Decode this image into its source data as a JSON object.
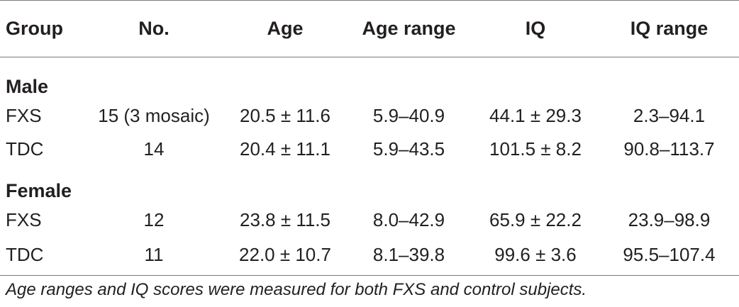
{
  "table": {
    "headers": [
      "Group",
      "No.",
      "Age",
      "Age range",
      "IQ",
      "IQ range"
    ],
    "sections": [
      {
        "label": "Male",
        "rows": [
          [
            "FXS",
            "15 (3 mosaic)",
            "20.5 ± 11.6",
            "5.9–40.9",
            "44.1 ± 29.3",
            "2.3–94.1"
          ],
          [
            "TDC",
            "14",
            "20.4 ± 11.1",
            "5.9–43.5",
            "101.5 ± 8.2",
            "90.8–113.7"
          ]
        ]
      },
      {
        "label": "Female",
        "rows": [
          [
            "FXS",
            "12",
            "23.8 ± 11.5",
            "8.0–42.9",
            "65.9 ± 22.2",
            "23.9–98.9"
          ],
          [
            "TDC",
            "11",
            "22.0 ± 10.7",
            "8.1–39.8",
            "99.6 ± 3.6",
            "95.5–107.4"
          ]
        ]
      }
    ]
  },
  "footnote": "Age ranges and IQ scores were measured for both FXS and control subjects."
}
